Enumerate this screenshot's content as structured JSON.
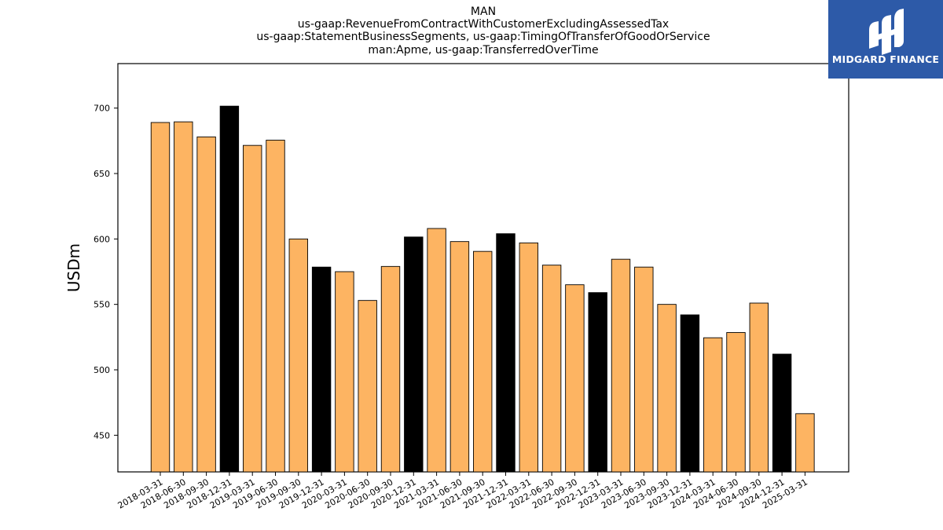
{
  "titles": [
    "MAN",
    "us-gaap:RevenueFromContractWithCustomerExcludingAssessedTax",
    "us-gaap:StatementBusinessSegments, us-gaap:TimingOfTransferOfGoodOrService",
    "man:Apme, us-gaap:TransferredOverTime"
  ],
  "logo": {
    "text": "MIDGARD FINANCE",
    "icon": "midgard-logo-icon",
    "background": "#2d5aa8"
  },
  "chart_data": {
    "type": "bar",
    "title": "MAN\nus-gaap:RevenueFromContractWithCustomerExcludingAssessedTax\nus-gaap:StatementBusinessSegments, us-gaap:TimingOfTransferOfGoodOrService\nman:Apme, us-gaap:TransferredOverTime",
    "xlabel": "",
    "ylabel": "USDm",
    "ylim": [
      422,
      734
    ],
    "yticks": [
      450,
      500,
      550,
      600,
      650,
      700
    ],
    "grid": false,
    "colors": {
      "quarter": "#fdb462",
      "year_end": "#000000",
      "edge": "#000000"
    },
    "categories": [
      "2018-03-31",
      "2018-06-30",
      "2018-09-30",
      "2018-12-31",
      "2019-03-31",
      "2019-06-30",
      "2019-09-30",
      "2019-12-31",
      "2020-03-31",
      "2020-06-30",
      "2020-09-30",
      "2020-12-31",
      "2021-03-31",
      "2021-06-30",
      "2021-09-30",
      "2021-12-31",
      "2022-03-31",
      "2022-06-30",
      "2022-09-30",
      "2022-12-31",
      "2023-03-31",
      "2023-06-30",
      "2023-09-30",
      "2023-12-31",
      "2024-03-31",
      "2024-06-30",
      "2024-09-30",
      "2024-12-31",
      "2025-03-31"
    ],
    "values": [
      689,
      689.5,
      678,
      701.5,
      671.5,
      675.5,
      600,
      578.5,
      575,
      553,
      579,
      601.5,
      608,
      598,
      590.5,
      604,
      597,
      580,
      565,
      559,
      584.5,
      578.5,
      550,
      542,
      524.5,
      528.5,
      551,
      512,
      466.5
    ],
    "highlight": [
      false,
      false,
      false,
      true,
      false,
      false,
      false,
      true,
      false,
      false,
      false,
      true,
      false,
      false,
      false,
      true,
      false,
      false,
      false,
      true,
      false,
      false,
      false,
      true,
      false,
      false,
      false,
      true,
      false
    ]
  }
}
